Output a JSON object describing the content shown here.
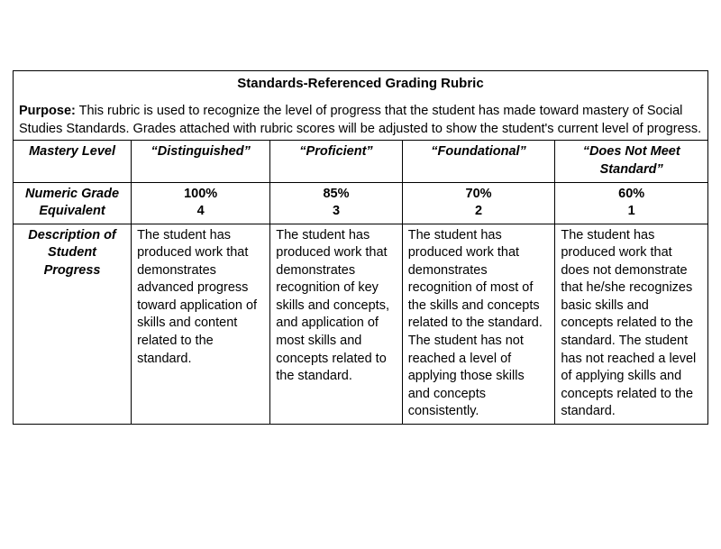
{
  "table": {
    "title": "Standards-Referenced Grading Rubric",
    "purpose_label": "Purpose:",
    "purpose_text": "This rubric is used to recognize the level of progress that the student has made toward mastery of Social Studies Standards.  Grades attached with rubric scores will be adjusted to show the student's current level of progress.",
    "row_headers": {
      "mastery": "Mastery Level",
      "numeric": "Numeric Grade Equivalent",
      "description": "Description of Student Progress"
    },
    "levels": [
      {
        "name": "“Distinguished”",
        "grade_pct": "100%",
        "grade_num": "4",
        "description": "The student has produced work that demonstrates advanced progress toward application of skills and content related to the standard."
      },
      {
        "name": "“Proficient”",
        "grade_pct": "85%",
        "grade_num": "3",
        "description": "The student has produced work that demonstrates recognition of key skills and concepts, and application of most skills and concepts related to the standard."
      },
      {
        "name": "“Foundational”",
        "grade_pct": "70%",
        "grade_num": "2",
        "description": "The student has produced work that demonstrates recognition of most of the skills and concepts related to the standard.  The student has not reached a level of applying those skills and concepts consistently."
      },
      {
        "name": "“Does Not Meet Standard”",
        "grade_pct": "60%",
        "grade_num": "1",
        "description": "The student has produced work that does not demonstrate that he/she recognizes basic skills and concepts related to the standard.  The student has not reached a level of applying skills and concepts related to the standard."
      }
    ],
    "colors": {
      "border": "#000000",
      "background": "#ffffff",
      "text": "#000000"
    },
    "font_family": "Arial",
    "font_size_pt": 11
  }
}
